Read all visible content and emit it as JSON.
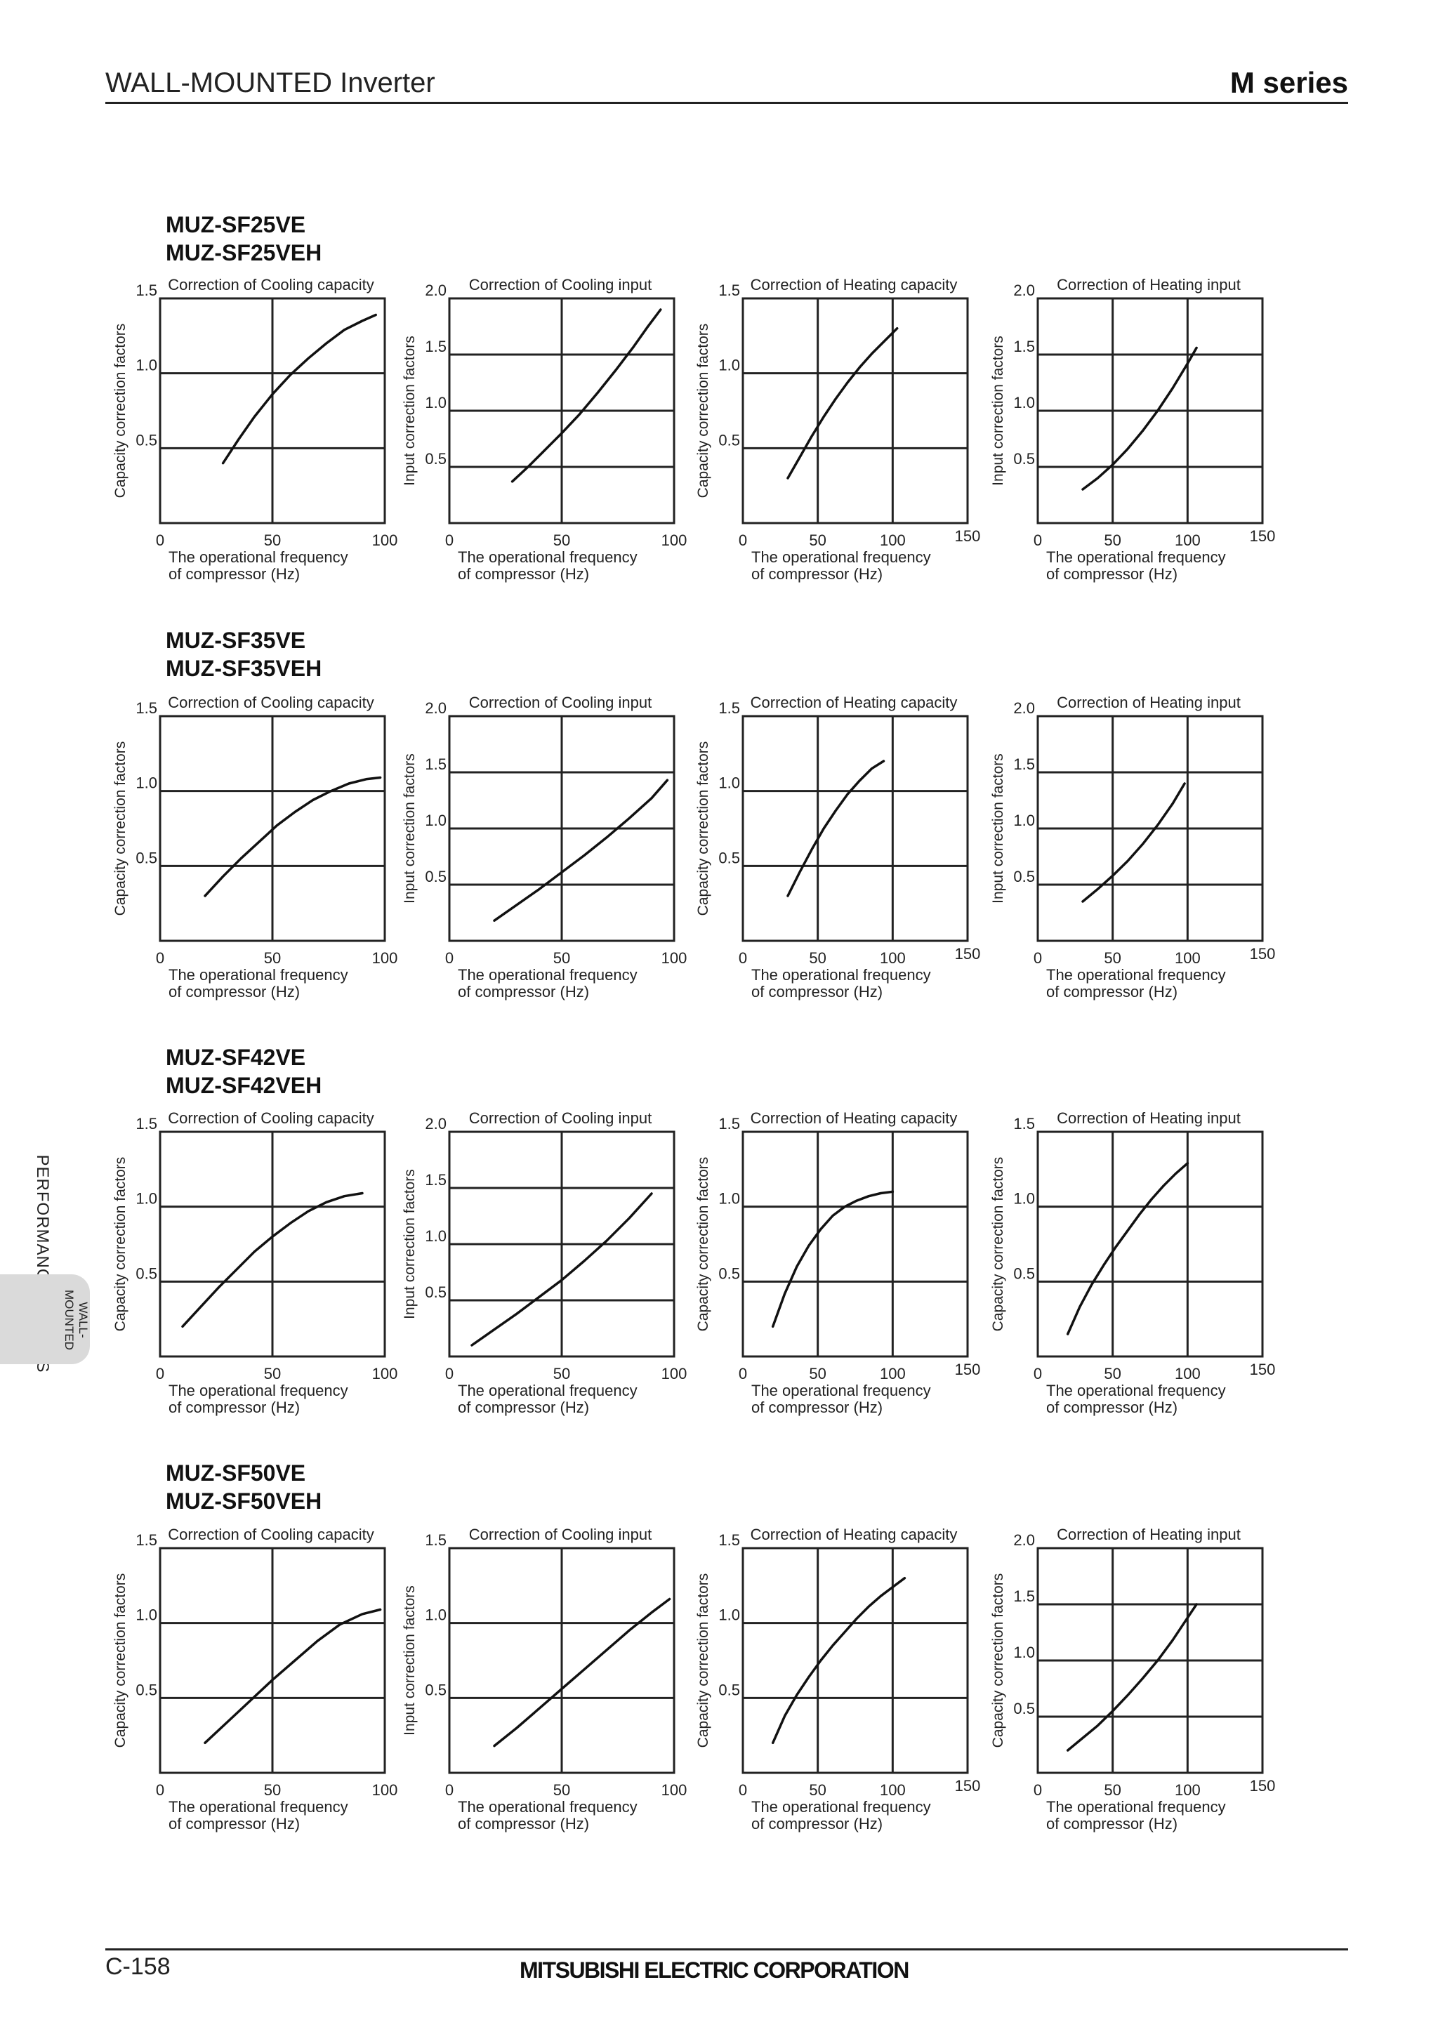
{
  "header": {
    "title": "WALL-MOUNTED Inverter",
    "series": "M series"
  },
  "footer": {
    "page_number": "C-158",
    "company": "MITSUBISHI ELECTRIC CORPORATION"
  },
  "side": {
    "section_label": "PERFORMANCE CURVES",
    "tab_label": "WALL-\nMOUNTED"
  },
  "labels": {
    "x_axis_line1": "The operational frequency",
    "x_axis_line2": "of compressor (Hz)",
    "y_capacity": "Capacity correction factors",
    "y_input": "Input correction factors"
  },
  "models": [
    {
      "line1": "MUZ-SF25VE",
      "line2": "MUZ-SF25VEH"
    },
    {
      "line1": "MUZ-SF35VE",
      "line2": "MUZ-SF35VEH"
    },
    {
      "line1": "MUZ-SF42VE",
      "line2": "MUZ-SF42VEH"
    },
    {
      "line1": "MUZ-SF50VE",
      "line2": "MUZ-SF50VEH"
    }
  ],
  "chart_data": [
    {
      "type": "line",
      "model": "MUZ-SF25VE",
      "title": "Correction of Cooling capacity",
      "ylabel": "Capacity correction factors",
      "xlabel": "The operational frequency of compressor (Hz)",
      "xlim": [
        0,
        100
      ],
      "ylim": [
        0,
        1.5
      ],
      "x_ticks": [
        0,
        50,
        100
      ],
      "y_ticks": [
        0.5,
        1.0,
        1.5
      ],
      "x_tick_labels": [
        "0",
        "50",
        "100"
      ],
      "y_tick_labels": [
        "0.5",
        "1.0",
        "1.5"
      ],
      "grid": true,
      "x": [
        28,
        35,
        42,
        50,
        58,
        66,
        74,
        82,
        90,
        96
      ],
      "y": [
        0.4,
        0.56,
        0.71,
        0.86,
        0.99,
        1.1,
        1.2,
        1.29,
        1.35,
        1.39
      ]
    },
    {
      "type": "line",
      "model": "MUZ-SF25VE",
      "title": "Correction of Cooling input",
      "ylabel": "Input correction factors",
      "xlabel": "The operational frequency of compressor (Hz)",
      "xlim": [
        0,
        100
      ],
      "ylim": [
        0,
        2.0
      ],
      "x_ticks": [
        0,
        50,
        100
      ],
      "y_ticks": [
        0.5,
        1.0,
        1.5,
        2.0
      ],
      "x_tick_labels": [
        "0",
        "50",
        "100"
      ],
      "y_tick_labels": [
        "0.5",
        "1.0",
        "1.5",
        "2.0"
      ],
      "grid": true,
      "x": [
        28,
        35,
        42,
        50,
        58,
        66,
        74,
        82,
        88,
        94
      ],
      "y": [
        0.37,
        0.5,
        0.64,
        0.8,
        0.97,
        1.16,
        1.36,
        1.57,
        1.74,
        1.9
      ]
    },
    {
      "type": "line",
      "model": "MUZ-SF25VE",
      "title": "Correction of Heating capacity",
      "ylabel": "Capacity correction factors",
      "xlabel": "The operational frequency of compressor (Hz)",
      "xlim": [
        0,
        150
      ],
      "ylim": [
        0,
        1.5
      ],
      "x_ticks": [
        0,
        50,
        100,
        150
      ],
      "y_ticks": [
        0.5,
        1.0,
        1.5
      ],
      "x_tick_labels": [
        "0",
        "50",
        "100",
        "150"
      ],
      "y_tick_labels": [
        "0.5",
        "1.0",
        "1.5"
      ],
      "grid": true,
      "x": [
        30,
        38,
        46,
        54,
        62,
        70,
        78,
        86,
        94,
        103
      ],
      "y": [
        0.3,
        0.44,
        0.58,
        0.71,
        0.83,
        0.94,
        1.04,
        1.13,
        1.21,
        1.3
      ]
    },
    {
      "type": "line",
      "model": "MUZ-SF25VE",
      "title": "Correction of Heating input",
      "ylabel": "Input correction factors",
      "xlabel": "The operational frequency of compressor (Hz)",
      "xlim": [
        0,
        150
      ],
      "ylim": [
        0,
        2.0
      ],
      "x_ticks": [
        0,
        50,
        100,
        150
      ],
      "y_ticks": [
        0.5,
        1.0,
        1.5,
        2.0
      ],
      "x_tick_labels": [
        "0",
        "50",
        "100",
        "150"
      ],
      "y_tick_labels": [
        "0.5",
        "1.0",
        "1.5",
        "2.0"
      ],
      "grid": true,
      "x": [
        30,
        40,
        50,
        60,
        70,
        80,
        90,
        100,
        106
      ],
      "y": [
        0.3,
        0.4,
        0.52,
        0.66,
        0.82,
        1.0,
        1.2,
        1.42,
        1.56
      ]
    },
    {
      "type": "line",
      "model": "MUZ-SF35VE",
      "title": "Correction of Cooling capacity",
      "ylabel": "Capacity correction factors",
      "xlabel": "The operational frequency of compressor (Hz)",
      "xlim": [
        0,
        100
      ],
      "ylim": [
        0,
        1.5
      ],
      "x_ticks": [
        0,
        50,
        100
      ],
      "y_ticks": [
        0.5,
        1.0,
        1.5
      ],
      "x_tick_labels": [
        "0",
        "50",
        "100"
      ],
      "y_tick_labels": [
        "0.5",
        "1.0",
        "1.5"
      ],
      "grid": true,
      "x": [
        20,
        28,
        36,
        44,
        52,
        60,
        68,
        76,
        84,
        92,
        98
      ],
      "y": [
        0.3,
        0.43,
        0.55,
        0.66,
        0.77,
        0.86,
        0.94,
        1.0,
        1.05,
        1.08,
        1.09
      ]
    },
    {
      "type": "line",
      "model": "MUZ-SF35VE",
      "title": "Correction of Cooling input",
      "ylabel": "Input correction factors",
      "xlabel": "The operational frequency of compressor (Hz)",
      "xlim": [
        0,
        100
      ],
      "ylim": [
        0,
        2.0
      ],
      "x_ticks": [
        0,
        50,
        100
      ],
      "y_ticks": [
        0.5,
        1.0,
        1.5,
        2.0
      ],
      "x_tick_labels": [
        "0",
        "50",
        "100"
      ],
      "y_tick_labels": [
        "0.5",
        "1.0",
        "1.5",
        "2.0"
      ],
      "grid": true,
      "x": [
        20,
        30,
        40,
        50,
        60,
        70,
        80,
        90,
        97
      ],
      "y": [
        0.18,
        0.32,
        0.46,
        0.61,
        0.76,
        0.92,
        1.09,
        1.27,
        1.43
      ]
    },
    {
      "type": "line",
      "model": "MUZ-SF35VE",
      "title": "Correction of Heating capacity",
      "ylabel": "Capacity correction factors",
      "xlabel": "The operational frequency of compressor (Hz)",
      "xlim": [
        0,
        150
      ],
      "ylim": [
        0,
        1.5
      ],
      "x_ticks": [
        0,
        50,
        100,
        150
      ],
      "y_ticks": [
        0.5,
        1.0,
        1.5
      ],
      "x_tick_labels": [
        "0",
        "50",
        "100",
        "150"
      ],
      "y_tick_labels": [
        "0.5",
        "1.0",
        "1.5"
      ],
      "grid": true,
      "x": [
        30,
        38,
        46,
        54,
        62,
        70,
        78,
        86,
        94
      ],
      "y": [
        0.3,
        0.46,
        0.61,
        0.75,
        0.87,
        0.98,
        1.07,
        1.15,
        1.2
      ]
    },
    {
      "type": "line",
      "model": "MUZ-SF35VE",
      "title": "Correction of Heating input",
      "ylabel": "Input correction factors",
      "xlabel": "The operational frequency of compressor (Hz)",
      "xlim": [
        0,
        150
      ],
      "ylim": [
        0,
        2.0
      ],
      "x_ticks": [
        0,
        50,
        100,
        150
      ],
      "y_ticks": [
        0.5,
        1.0,
        1.5,
        2.0
      ],
      "x_tick_labels": [
        "0",
        "50",
        "100",
        "150"
      ],
      "y_tick_labels": [
        "0.5",
        "1.0",
        "1.5",
        "2.0"
      ],
      "grid": true,
      "x": [
        30,
        40,
        50,
        60,
        70,
        80,
        90,
        98
      ],
      "y": [
        0.35,
        0.46,
        0.58,
        0.71,
        0.86,
        1.03,
        1.22,
        1.4
      ]
    },
    {
      "type": "line",
      "model": "MUZ-SF42VE",
      "title": "Correction of Cooling capacity",
      "ylabel": "Capacity correction factors",
      "xlabel": "The operational frequency of compressor (Hz)",
      "xlim": [
        0,
        100
      ],
      "ylim": [
        0,
        1.5
      ],
      "x_ticks": [
        0,
        50,
        100
      ],
      "y_ticks": [
        0.5,
        1.0,
        1.5
      ],
      "x_tick_labels": [
        "0",
        "50",
        "100"
      ],
      "y_tick_labels": [
        "0.5",
        "1.0",
        "1.5"
      ],
      "grid": true,
      "x": [
        10,
        18,
        26,
        34,
        42,
        50,
        58,
        66,
        74,
        82,
        90
      ],
      "y": [
        0.2,
        0.33,
        0.46,
        0.58,
        0.7,
        0.8,
        0.89,
        0.97,
        1.03,
        1.07,
        1.09
      ]
    },
    {
      "type": "line",
      "model": "MUZ-SF42VE",
      "title": "Correction of Cooling input",
      "ylabel": "Input correction factors",
      "xlabel": "The operational frequency of compressor (Hz)",
      "xlim": [
        0,
        100
      ],
      "ylim": [
        0,
        2.0
      ],
      "x_ticks": [
        0,
        50,
        100
      ],
      "y_ticks": [
        0.5,
        1.0,
        1.5,
        2.0
      ],
      "x_tick_labels": [
        "0",
        "50",
        "100"
      ],
      "y_tick_labels": [
        "0.5",
        "1.0",
        "1.5",
        "2.0"
      ],
      "grid": true,
      "x": [
        10,
        20,
        30,
        40,
        50,
        60,
        70,
        80,
        90
      ],
      "y": [
        0.1,
        0.24,
        0.38,
        0.53,
        0.68,
        0.85,
        1.03,
        1.23,
        1.45
      ]
    },
    {
      "type": "line",
      "model": "MUZ-SF42VE",
      "title": "Correction of Heating capacity",
      "ylabel": "Capacity correction factors",
      "xlabel": "The operational frequency of compressor (Hz)",
      "xlim": [
        0,
        150
      ],
      "ylim": [
        0,
        1.5
      ],
      "x_ticks": [
        0,
        50,
        100,
        150
      ],
      "y_ticks": [
        0.5,
        1.0,
        1.5
      ],
      "x_tick_labels": [
        "0",
        "50",
        "100",
        "150"
      ],
      "y_tick_labels": [
        "0.5",
        "1.0",
        "1.5"
      ],
      "grid": true,
      "x": [
        20,
        28,
        36,
        44,
        52,
        60,
        68,
        76,
        84,
        92,
        100
      ],
      "y": [
        0.2,
        0.42,
        0.6,
        0.74,
        0.85,
        0.94,
        1.0,
        1.04,
        1.07,
        1.09,
        1.1
      ]
    },
    {
      "type": "line",
      "model": "MUZ-SF42VE",
      "title": "Correction of Heating input",
      "ylabel": "Capacity correction factors",
      "xlabel": "The operational frequency of compressor (Hz)",
      "xlim": [
        0,
        150
      ],
      "ylim": [
        0,
        1.5
      ],
      "x_ticks": [
        0,
        50,
        100,
        150
      ],
      "y_ticks": [
        0.5,
        1.0,
        1.5
      ],
      "x_tick_labels": [
        "0",
        "50",
        "100",
        "150"
      ],
      "y_tick_labels": [
        "0.5",
        "1.0",
        "1.5"
      ],
      "grid": true,
      "x": [
        20,
        28,
        36,
        44,
        52,
        60,
        68,
        76,
        84,
        92,
        100
      ],
      "y": [
        0.15,
        0.33,
        0.48,
        0.61,
        0.73,
        0.84,
        0.95,
        1.05,
        1.14,
        1.22,
        1.29
      ]
    },
    {
      "type": "line",
      "model": "MUZ-SF50VE",
      "title": "Correction of Cooling capacity",
      "ylabel": "Capacity correction factors",
      "xlabel": "The operational frequency of compressor (Hz)",
      "xlim": [
        0,
        100
      ],
      "ylim": [
        0,
        1.5
      ],
      "x_ticks": [
        0,
        50,
        100
      ],
      "y_ticks": [
        0.5,
        1.0,
        1.5
      ],
      "x_tick_labels": [
        "0",
        "50",
        "100"
      ],
      "y_tick_labels": [
        "0.5",
        "1.0",
        "1.5"
      ],
      "grid": true,
      "x": [
        20,
        30,
        40,
        50,
        60,
        70,
        80,
        90,
        98
      ],
      "y": [
        0.2,
        0.34,
        0.48,
        0.62,
        0.75,
        0.88,
        0.99,
        1.06,
        1.09
      ]
    },
    {
      "type": "line",
      "model": "MUZ-SF50VE",
      "title": "Correction of Cooling input",
      "ylabel": "Input correction factors",
      "xlabel": "The operational frequency of compressor (Hz)",
      "xlim": [
        0,
        100
      ],
      "ylim": [
        0,
        1.5
      ],
      "x_ticks": [
        0,
        50,
        100
      ],
      "y_ticks": [
        0.5,
        1.0,
        1.5
      ],
      "x_tick_labels": [
        "0",
        "50",
        "100"
      ],
      "y_tick_labels": [
        "0.5",
        "1.0",
        "1.5"
      ],
      "grid": true,
      "x": [
        20,
        30,
        40,
        50,
        60,
        70,
        80,
        90,
        98
      ],
      "y": [
        0.18,
        0.3,
        0.43,
        0.56,
        0.69,
        0.82,
        0.95,
        1.07,
        1.16
      ]
    },
    {
      "type": "line",
      "model": "MUZ-SF50VE",
      "title": "Correction of Heating capacity",
      "ylabel": "Capacity correction factors",
      "xlabel": "The operational frequency of compressor (Hz)",
      "xlim": [
        0,
        150
      ],
      "ylim": [
        0,
        1.5
      ],
      "x_ticks": [
        0,
        50,
        100,
        150
      ],
      "y_ticks": [
        0.5,
        1.0,
        1.5
      ],
      "x_tick_labels": [
        "0",
        "50",
        "100",
        "150"
      ],
      "y_tick_labels": [
        "0.5",
        "1.0",
        "1.5"
      ],
      "grid": true,
      "x": [
        20,
        28,
        36,
        44,
        52,
        60,
        68,
        76,
        84,
        92,
        100,
        108
      ],
      "y": [
        0.2,
        0.38,
        0.52,
        0.64,
        0.75,
        0.85,
        0.94,
        1.03,
        1.11,
        1.18,
        1.24,
        1.3
      ]
    },
    {
      "type": "line",
      "model": "MUZ-SF50VE",
      "title": "Correction of Heating input",
      "ylabel": "Capacity correction factors",
      "xlabel": "The operational frequency of compressor (Hz)",
      "xlim": [
        0,
        150
      ],
      "ylim": [
        0,
        2.0
      ],
      "x_ticks": [
        0,
        50,
        100,
        150
      ],
      "y_ticks": [
        0.5,
        1.0,
        1.5,
        2.0
      ],
      "x_tick_labels": [
        "0",
        "50",
        "100",
        "150"
      ],
      "y_tick_labels": [
        "0.5",
        "1.0",
        "1.5",
        "2.0"
      ],
      "grid": true,
      "x": [
        20,
        30,
        40,
        50,
        60,
        70,
        80,
        90,
        100,
        106
      ],
      "y": [
        0.2,
        0.31,
        0.42,
        0.55,
        0.69,
        0.84,
        1.0,
        1.18,
        1.38,
        1.5
      ]
    }
  ]
}
